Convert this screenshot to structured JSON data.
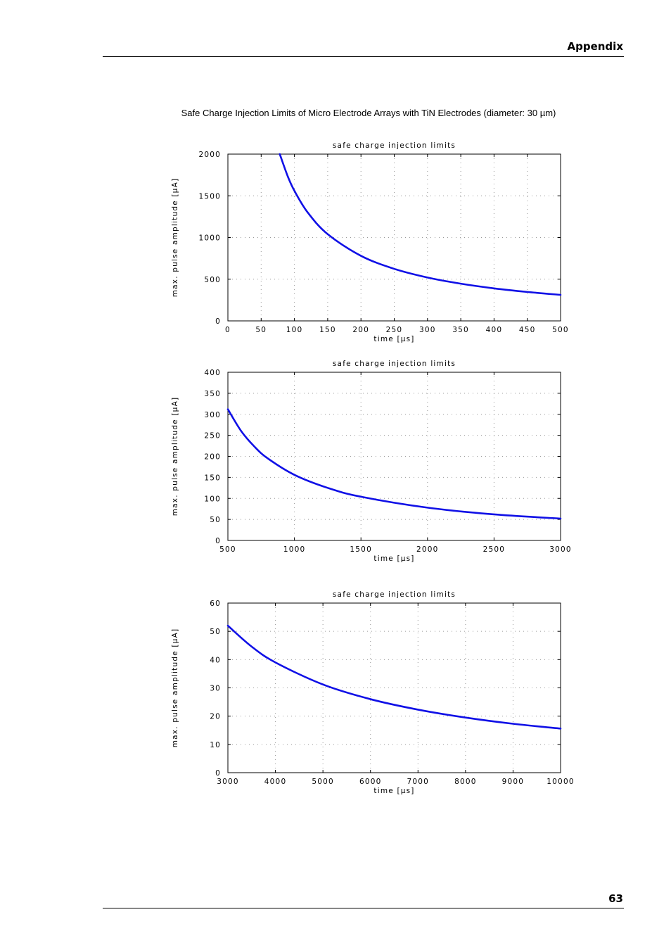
{
  "header": {
    "title": "Appendix"
  },
  "figure": {
    "caption": "Safe Charge Injection Limits of Micro Electrode Arrays with TiN Electrodes (diameter: 30 µm)"
  },
  "footer": {
    "page_number": "63"
  },
  "colors": {
    "curve": "#1010e6",
    "grid": "#9a9a9a",
    "axis": "#000000"
  },
  "chart_data": [
    {
      "type": "line",
      "title": "safe charge injection limits",
      "xlabel": "time [µs]",
      "ylabel": "max. pulse amplitude [µA]",
      "xlim": [
        0,
        500
      ],
      "ylim": [
        0,
        2000
      ],
      "xticks": [
        0,
        50,
        100,
        150,
        200,
        250,
        300,
        350,
        400,
        450,
        500
      ],
      "yticks": [
        0,
        500,
        1000,
        1500,
        2000
      ],
      "grid": true,
      "series": [
        {
          "x": [
            78,
            90,
            100,
            120,
            150,
            200,
            250,
            300,
            350,
            400,
            450,
            500
          ],
          "values": [
            2000,
            1733,
            1560,
            1300,
            1040,
            780,
            624,
            520,
            446,
            390,
            347,
            312
          ]
        }
      ]
    },
    {
      "type": "line",
      "title": "safe charge injection limits",
      "xlabel": "time [µs]",
      "ylabel": "max. pulse amplitude [µA]",
      "xlim": [
        500,
        3000
      ],
      "ylim": [
        0,
        400
      ],
      "xticks": [
        500,
        1000,
        1500,
        2000,
        2500,
        3000
      ],
      "yticks": [
        0,
        50,
        100,
        150,
        200,
        250,
        300,
        350,
        400
      ],
      "grid": true,
      "series": [
        {
          "x": [
            500,
            600,
            700,
            800,
            1000,
            1250,
            1500,
            2000,
            2500,
            3000
          ],
          "values": [
            312,
            260,
            223,
            195,
            156,
            125,
            104,
            78,
            62,
            52
          ]
        }
      ]
    },
    {
      "type": "line",
      "title": "safe charge injection limits",
      "xlabel": "time [µs]",
      "ylabel": "max. pulse amplitude [µA]",
      "xlim": [
        3000,
        10000
      ],
      "ylim": [
        0,
        60
      ],
      "xticks": [
        3000,
        4000,
        5000,
        6000,
        7000,
        8000,
        9000,
        10000
      ],
      "yticks": [
        0,
        10,
        20,
        30,
        40,
        50,
        60
      ],
      "grid": true,
      "series": [
        {
          "x": [
            3000,
            3500,
            4000,
            5000,
            6000,
            7000,
            8000,
            9000,
            10000
          ],
          "values": [
            52,
            44.6,
            39,
            31.2,
            26,
            22.3,
            19.5,
            17.3,
            15.6
          ]
        }
      ]
    }
  ]
}
